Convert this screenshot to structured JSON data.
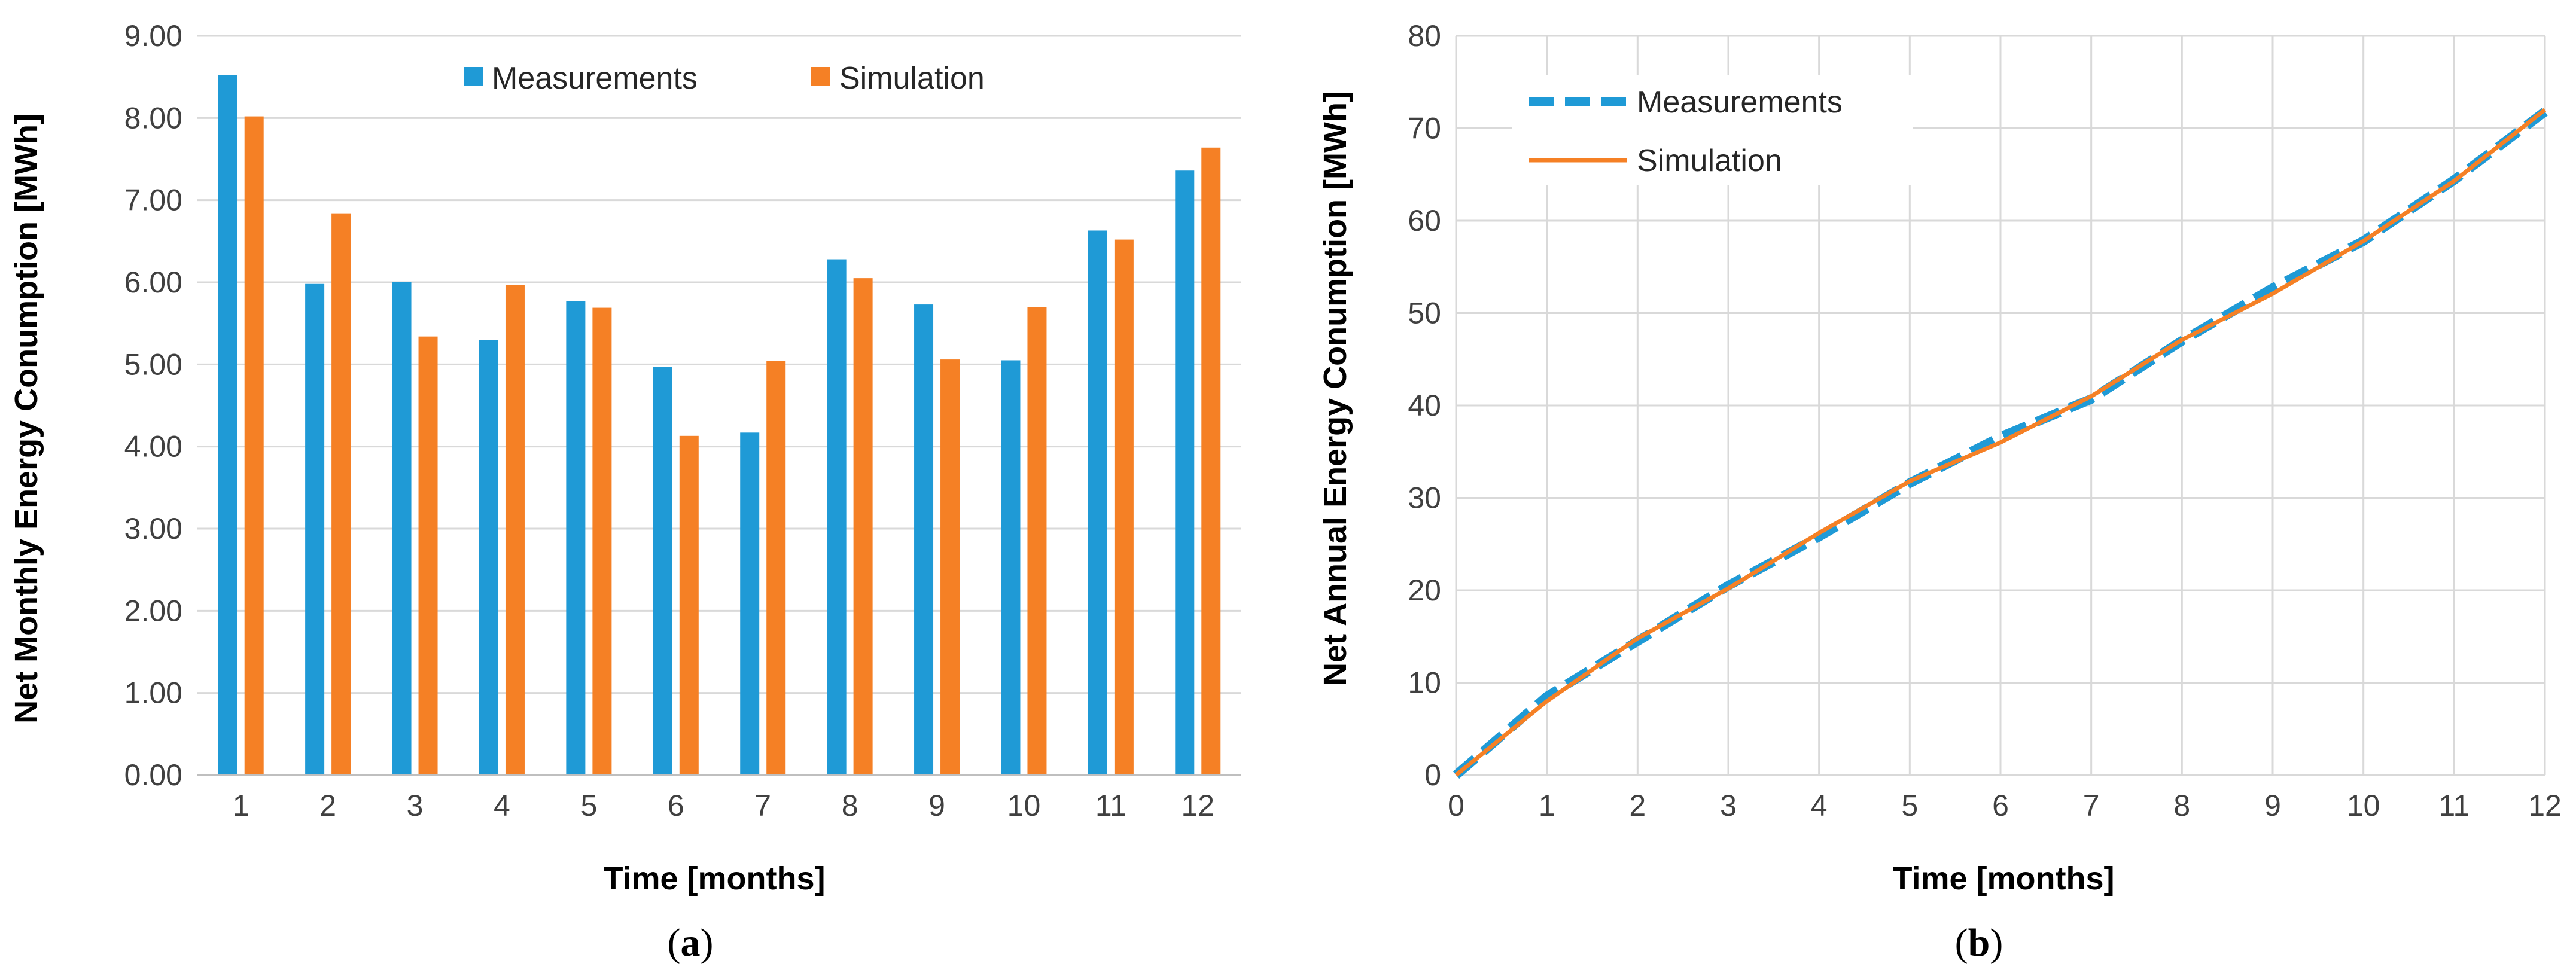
{
  "colors": {
    "measurements": "#1f9ad6",
    "simulation": "#f58025"
  },
  "chart_data": [
    {
      "type": "bar",
      "panel_label": "a",
      "xlabel": "Time [months]",
      "ylabel": "Net Monthly Energy Conumption [MWh]",
      "ylim": [
        0,
        9
      ],
      "y_ticks": [
        "0.00",
        "1.00",
        "2.00",
        "3.00",
        "4.00",
        "5.00",
        "6.00",
        "7.00",
        "8.00",
        "9.00"
      ],
      "grid": true,
      "legend": "top",
      "categories": [
        "1",
        "2",
        "3",
        "4",
        "5",
        "6",
        "7",
        "8",
        "9",
        "10",
        "11",
        "12"
      ],
      "series": [
        {
          "name": "Measurements",
          "values": [
            8.52,
            5.98,
            6.0,
            5.3,
            5.77,
            4.97,
            4.17,
            6.28,
            5.73,
            5.05,
            6.63,
            7.36
          ]
        },
        {
          "name": "Simulation",
          "values": [
            8.02,
            6.84,
            5.34,
            5.97,
            5.69,
            4.13,
            5.04,
            6.05,
            5.06,
            5.7,
            6.52,
            7.64
          ]
        }
      ]
    },
    {
      "type": "line",
      "panel_label": "b",
      "xlabel": "Time [months]",
      "ylabel": "Net Annual Energy Conumption [MWh]",
      "xlim": [
        0,
        12
      ],
      "ylim": [
        0,
        80
      ],
      "x_ticks": [
        "0",
        "1",
        "2",
        "3",
        "4",
        "5",
        "6",
        "7",
        "8",
        "9",
        "10",
        "11",
        "12"
      ],
      "y_ticks": [
        "0",
        "10",
        "20",
        "30",
        "40",
        "50",
        "60",
        "70",
        "80"
      ],
      "grid": true,
      "legend": "top-left",
      "x": [
        0,
        1,
        2,
        3,
        4,
        5,
        6,
        7,
        8,
        9,
        10,
        11,
        12
      ],
      "series": [
        {
          "name": "Measurements",
          "style": "dashed",
          "values": [
            0,
            8.5,
            14.5,
            20.5,
            25.8,
            31.6,
            36.6,
            40.7,
            47.0,
            52.7,
            57.8,
            64.4,
            71.8
          ]
        },
        {
          "name": "Simulation",
          "style": "solid",
          "values": [
            0,
            8.0,
            14.8,
            20.2,
            26.2,
            31.8,
            36.0,
            41.0,
            47.1,
            52.1,
            57.8,
            64.3,
            72.0
          ]
        }
      ]
    }
  ]
}
